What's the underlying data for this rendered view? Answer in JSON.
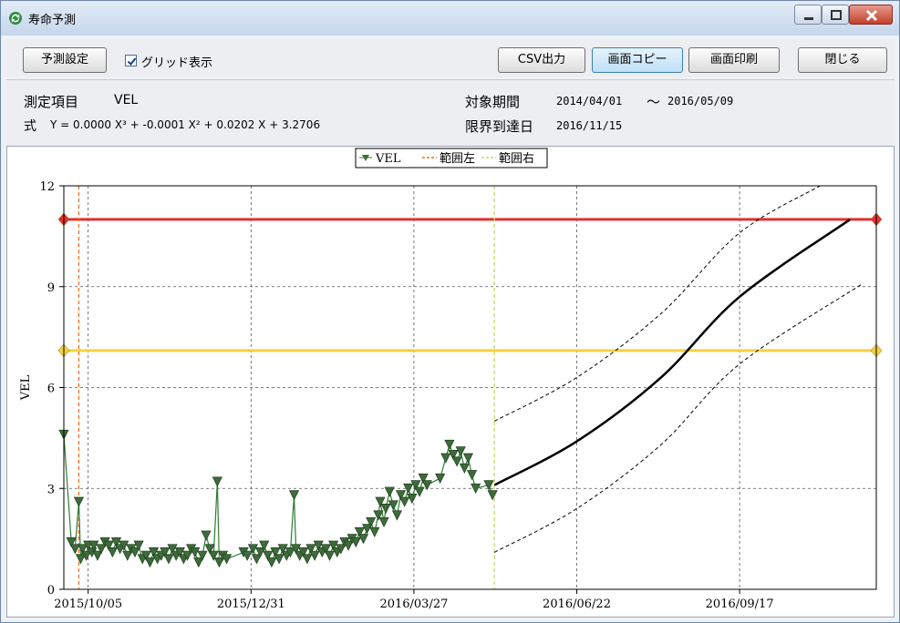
{
  "window": {
    "title": "寿命予測"
  },
  "toolbar": {
    "predict_settings": "予測設定",
    "grid_checkbox_label": "グリッド表示",
    "grid_checked": true,
    "csv_export": "CSV出力",
    "screen_copy": "画面コピー",
    "screen_print": "画面印刷",
    "close": "閉じる"
  },
  "info": {
    "item_label": "測定項目",
    "item_value": "VEL",
    "formula_label": "式",
    "formula_value": "Y = 0.0000 X³ + -0.0001 X² + 0.0202 X + 3.2706",
    "period_label": "対象期間",
    "period_start": "2014/04/01",
    "period_sep": "～",
    "period_end": "2016/05/09",
    "limit_label": "限界到達日",
    "limit_date": "2016/11/15"
  },
  "chart_data": {
    "type": "scatter",
    "ylabel": "VEL",
    "ylim": [
      0,
      12
    ],
    "yticks": [
      "0",
      "3",
      "6",
      "9",
      "12"
    ],
    "xticks": [
      "2015/10/05",
      "2015/12/31",
      "2016/03/27",
      "2016/06/22",
      "2016/09/17"
    ],
    "xlim": [
      "2015/09/22",
      "2016/11/29"
    ],
    "grid": true,
    "legend_position": "top-center",
    "legend": [
      "VEL",
      "範囲左",
      "範囲右"
    ],
    "colors": {
      "vel": "#2f7d32",
      "marker_fill": "#3d6b3a",
      "range_left": "#f07020",
      "range_right": "#c8d86a",
      "upper_threshold": "#e03030",
      "lower_threshold": "#f4d03f",
      "prediction": "#000000"
    },
    "upper_threshold": 11.0,
    "lower_threshold": 7.1,
    "range_left_date": "2015/09/30",
    "range_right_date": "2016/05/09",
    "series": [
      {
        "name": "VEL",
        "points": [
          [
            "2015/09/22",
            4.6
          ],
          [
            "2015/09/26",
            1.4
          ],
          [
            "2015/09/28",
            1.2
          ],
          [
            "2015/09/30",
            2.6
          ],
          [
            "2015/10/01",
            0.9
          ],
          [
            "2015/10/02",
            1.2
          ],
          [
            "2015/10/04",
            1.0
          ],
          [
            "2015/10/05",
            1.3
          ],
          [
            "2015/10/07",
            1.1
          ],
          [
            "2015/10/08",
            1.3
          ],
          [
            "2015/10/10",
            1.0
          ],
          [
            "2015/10/12",
            1.2
          ],
          [
            "2015/10/14",
            1.4
          ],
          [
            "2015/10/16",
            1.3
          ],
          [
            "2015/10/18",
            1.1
          ],
          [
            "2015/10/20",
            1.4
          ],
          [
            "2015/10/22",
            1.2
          ],
          [
            "2015/10/24",
            1.3
          ],
          [
            "2015/10/26",
            1.0
          ],
          [
            "2015/10/28",
            1.2
          ],
          [
            "2015/10/30",
            1.1
          ],
          [
            "2015/11/01",
            1.3
          ],
          [
            "2015/11/03",
            0.9
          ],
          [
            "2015/11/05",
            1.0
          ],
          [
            "2015/11/07",
            0.8
          ],
          [
            "2015/11/09",
            1.1
          ],
          [
            "2015/11/11",
            0.9
          ],
          [
            "2015/11/13",
            1.0
          ],
          [
            "2015/11/15",
            1.1
          ],
          [
            "2015/11/17",
            0.9
          ],
          [
            "2015/11/19",
            1.2
          ],
          [
            "2015/11/21",
            1.0
          ],
          [
            "2015/11/23",
            1.1
          ],
          [
            "2015/11/25",
            0.9
          ],
          [
            "2015/11/27",
            1.0
          ],
          [
            "2015/11/29",
            1.2
          ],
          [
            "2015/12/01",
            1.1
          ],
          [
            "2015/12/03",
            0.8
          ],
          [
            "2015/12/05",
            1.0
          ],
          [
            "2015/12/07",
            1.6
          ],
          [
            "2015/12/09",
            1.2
          ],
          [
            "2015/12/11",
            1.0
          ],
          [
            "2015/12/13",
            3.2
          ],
          [
            "2015/12/14",
            0.8
          ],
          [
            "2015/12/16",
            1.0
          ],
          [
            "2015/12/18",
            0.9
          ],
          [
            "2015/12/27",
            1.1
          ],
          [
            "2015/12/29",
            1.0
          ],
          [
            "2016/01/01",
            1.2
          ],
          [
            "2016/01/03",
            0.9
          ],
          [
            "2016/01/05",
            1.1
          ],
          [
            "2016/01/07",
            1.3
          ],
          [
            "2016/01/09",
            1.0
          ],
          [
            "2016/01/11",
            0.8
          ],
          [
            "2016/01/13",
            1.1
          ],
          [
            "2016/01/15",
            0.9
          ],
          [
            "2016/01/17",
            1.2
          ],
          [
            "2016/01/19",
            1.0
          ],
          [
            "2016/01/21",
            1.1
          ],
          [
            "2016/01/23",
            2.8
          ],
          [
            "2016/01/24",
            1.2
          ],
          [
            "2016/01/26",
            1.0
          ],
          [
            "2016/01/28",
            1.1
          ],
          [
            "2016/01/30",
            0.9
          ],
          [
            "2016/02/01",
            1.2
          ],
          [
            "2016/02/03",
            1.0
          ],
          [
            "2016/02/05",
            1.3
          ],
          [
            "2016/02/07",
            1.1
          ],
          [
            "2016/02/09",
            1.2
          ],
          [
            "2016/02/11",
            1.0
          ],
          [
            "2016/02/13",
            1.3
          ],
          [
            "2016/02/15",
            1.1
          ],
          [
            "2016/02/17",
            1.2
          ],
          [
            "2016/02/19",
            1.4
          ],
          [
            "2016/02/21",
            1.3
          ],
          [
            "2016/02/23",
            1.5
          ],
          [
            "2016/02/25",
            1.4
          ],
          [
            "2016/02/27",
            1.7
          ],
          [
            "2016/02/29",
            1.5
          ],
          [
            "2016/03/02",
            1.8
          ],
          [
            "2016/03/04",
            2.0
          ],
          [
            "2016/03/06",
            1.7
          ],
          [
            "2016/03/08",
            2.2
          ],
          [
            "2016/03/09",
            2.6
          ],
          [
            "2016/03/11",
            2.0
          ],
          [
            "2016/03/12",
            2.4
          ],
          [
            "2016/03/14",
            2.9
          ],
          [
            "2016/03/16",
            2.5
          ],
          [
            "2016/03/18",
            2.2
          ],
          [
            "2016/03/20",
            2.8
          ],
          [
            "2016/03/22",
            2.6
          ],
          [
            "2016/03/24",
            3.0
          ],
          [
            "2016/03/26",
            2.7
          ],
          [
            "2016/03/28",
            3.1
          ],
          [
            "2016/03/30",
            2.9
          ],
          [
            "2016/04/01",
            3.3
          ],
          [
            "2016/04/03",
            3.1
          ],
          [
            "2016/04/10",
            3.3
          ],
          [
            "2016/04/13",
            3.9
          ],
          [
            "2016/04/15",
            4.3
          ],
          [
            "2016/04/17",
            4.0
          ],
          [
            "2016/04/19",
            3.8
          ],
          [
            "2016/04/21",
            4.1
          ],
          [
            "2016/04/23",
            3.6
          ],
          [
            "2016/04/25",
            3.9
          ],
          [
            "2016/04/27",
            3.4
          ],
          [
            "2016/04/29",
            3.0
          ],
          [
            "2016/05/06",
            3.1
          ],
          [
            "2016/05/08",
            2.8
          ]
        ]
      }
    ],
    "prediction": [
      [
        "2016/05/09",
        3.1
      ],
      [
        "2016/06/22",
        4.4
      ],
      [
        "2016/08/06",
        6.3
      ],
      [
        "2016/09/17",
        8.7
      ],
      [
        "2016/11/15",
        11.0
      ]
    ],
    "prediction_upper": [
      [
        "2016/05/09",
        5.0
      ],
      [
        "2016/06/22",
        6.3
      ],
      [
        "2016/08/06",
        8.2
      ],
      [
        "2016/09/17",
        10.6
      ],
      [
        "2016/10/30",
        12.0
      ]
    ],
    "prediction_lower": [
      [
        "2016/05/09",
        1.1
      ],
      [
        "2016/06/22",
        2.4
      ],
      [
        "2016/08/06",
        4.3
      ],
      [
        "2016/09/17",
        6.7
      ],
      [
        "2016/11/22",
        9.1
      ]
    ]
  }
}
